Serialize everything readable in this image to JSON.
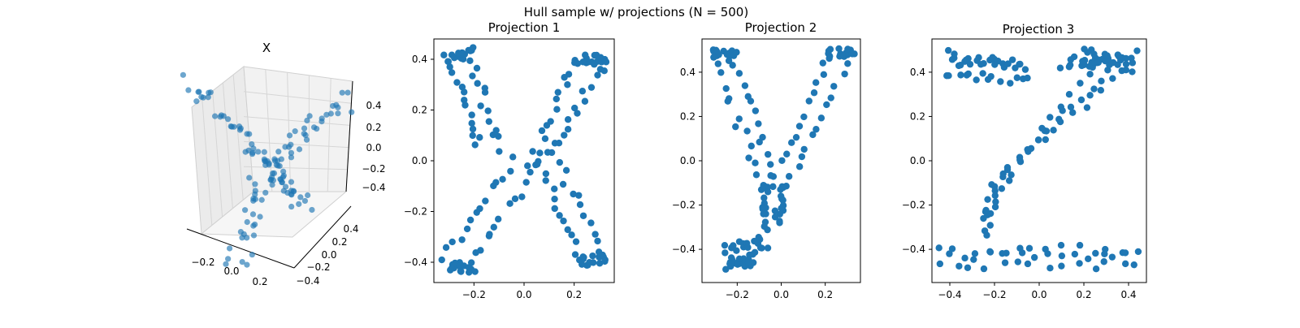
{
  "figure": {
    "suptitle": "Hull sample w/ projections (N = 500)"
  },
  "chart_data": [
    {
      "type": "scatter3d",
      "title": "X",
      "marker_color": "#1f77b4",
      "x_ticks": [
        "−0.2",
        "0.0",
        "0.2"
      ],
      "y_ticks": [
        "0.4",
        "0.2",
        "0.0",
        "−0.2",
        "−0.4"
      ],
      "z_ticks": [
        "0.4",
        "0.2",
        "0.0",
        "−0.2",
        "−0.4"
      ],
      "xlim": [
        -0.35,
        0.35
      ],
      "ylim": [
        -0.5,
        0.5
      ],
      "zlim": [
        -0.5,
        0.5
      ],
      "shape": "letter X extruded through hull"
    },
    {
      "type": "scatter",
      "title": "Projection 1",
      "marker_color": "#1f77b4",
      "xlim": [
        -0.36,
        0.36
      ],
      "ylim": [
        -0.48,
        0.48
      ],
      "x_ticks": [
        -0.2,
        0.0,
        0.2
      ],
      "x_tick_labels": [
        "−0.2",
        "0.0",
        "0.2"
      ],
      "y_ticks": [
        0.4,
        0.2,
        0.0,
        -0.2,
        -0.4
      ],
      "y_tick_labels": [
        "0.4",
        "0.2",
        "0.0",
        "−0.2",
        "−0.4"
      ],
      "shape": "X",
      "series": [
        {
          "segments": [
            [
              -0.3,
              0.4,
              -0.22,
              0.43
            ],
            [
              -0.22,
              0.43,
              -0.1,
              0.05
            ],
            [
              -0.3,
              0.4,
              -0.18,
              0.05
            ],
            [
              0.22,
              0.4,
              0.32,
              0.4
            ],
            [
              0.22,
              0.4,
              0.05,
              0.02
            ],
            [
              0.32,
              0.4,
              0.12,
              0.05
            ],
            [
              -0.05,
              0.0,
              -0.32,
              -0.38
            ],
            [
              0.05,
              0.0,
              -0.2,
              -0.4
            ],
            [
              -0.3,
              -0.42,
              -0.2,
              -0.42
            ],
            [
              0.05,
              0.0,
              0.22,
              -0.4
            ],
            [
              0.1,
              0.05,
              0.32,
              -0.38
            ],
            [
              0.22,
              -0.4,
              0.32,
              -0.38
            ]
          ]
        }
      ]
    },
    {
      "type": "scatter",
      "title": "Projection 2",
      "marker_color": "#1f77b4",
      "xlim": [
        -0.36,
        0.36
      ],
      "ylim": [
        -0.55,
        0.55
      ],
      "x_ticks": [
        -0.2,
        0.0,
        0.2
      ],
      "x_tick_labels": [
        "−0.2",
        "0.0",
        "0.2"
      ],
      "y_ticks": [
        0.4,
        0.2,
        0.0,
        -0.2,
        -0.4
      ],
      "y_tick_labels": [
        "0.4",
        "0.2",
        "0.0",
        "−0.2",
        "−0.4"
      ],
      "shape": "Y",
      "series": [
        {
          "segments": [
            [
              -0.32,
              0.49,
              -0.22,
              0.49
            ],
            [
              -0.32,
              0.47,
              -0.08,
              -0.1
            ],
            [
              -0.22,
              0.47,
              -0.02,
              -0.1
            ],
            [
              0.22,
              0.49,
              0.32,
              0.49
            ],
            [
              0.22,
              0.47,
              -0.05,
              -0.1
            ],
            [
              0.32,
              0.47,
              0.02,
              -0.12
            ],
            [
              -0.08,
              -0.1,
              -0.06,
              -0.3
            ],
            [
              0.0,
              -0.12,
              -0.02,
              -0.28
            ],
            [
              -0.26,
              -0.4,
              -0.1,
              -0.36
            ],
            [
              -0.24,
              -0.48,
              -0.08,
              -0.4
            ],
            [
              -0.22,
              -0.45,
              -0.14,
              -0.46
            ]
          ]
        }
      ]
    },
    {
      "type": "scatter",
      "title": "Projection 3",
      "marker_color": "#1f77b4",
      "xlim": [
        -0.48,
        0.48
      ],
      "ylim": [
        -0.55,
        0.55
      ],
      "x_ticks": [
        -0.4,
        -0.2,
        0.0,
        0.2,
        0.4
      ],
      "x_tick_labels": [
        "−0.4",
        "−0.2",
        "0.0",
        "0.2",
        "0.4"
      ],
      "y_ticks": [
        0.4,
        0.2,
        0.0,
        -0.2,
        -0.4
      ],
      "y_tick_labels": [
        "0.4",
        "0.2",
        "0.0",
        "−0.2",
        "−0.4"
      ],
      "shape": "Z",
      "series": [
        {
          "segments": [
            [
              -0.42,
              0.49,
              -0.06,
              0.41
            ],
            [
              -0.42,
              0.4,
              -0.06,
              0.36
            ],
            [
              -0.38,
              0.45,
              -0.1,
              0.44
            ],
            [
              0.1,
              0.4,
              0.42,
              0.49
            ],
            [
              0.2,
              0.49,
              0.42,
              0.42
            ],
            [
              0.15,
              0.45,
              0.4,
              0.46
            ],
            [
              0.38,
              0.42,
              -0.22,
              -0.12
            ],
            [
              0.28,
              0.48,
              -0.18,
              -0.14
            ],
            [
              0.3,
              0.4,
              -0.16,
              -0.06
            ],
            [
              -0.2,
              -0.12,
              -0.24,
              -0.32
            ],
            [
              -0.44,
              -0.4,
              0.44,
              -0.4
            ],
            [
              -0.44,
              -0.47,
              0.44,
              -0.47
            ],
            [
              -0.4,
              -0.43,
              0.4,
              -0.43
            ]
          ]
        }
      ]
    }
  ]
}
